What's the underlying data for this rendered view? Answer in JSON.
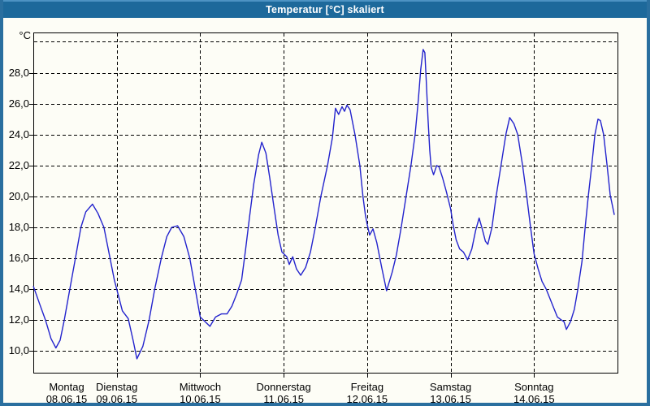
{
  "window": {
    "title": "Temperatur [°C] skaliert",
    "title_bar_color": "#1d699b",
    "border_color": "#2a6f9f",
    "background_color": "#fdfdf6"
  },
  "chart_data": {
    "type": "line",
    "title": "Temperatur [°C] skaliert",
    "ylabel": "°C",
    "xlabel": "",
    "grid": "dashed",
    "legend": "none",
    "line_color": "#2323cd",
    "ylim": [
      8.6,
      30.6
    ],
    "xlim_hours": [
      0,
      168
    ],
    "y_ticks": [
      {
        "value": 10,
        "label": "10,0"
      },
      {
        "value": 12,
        "label": "12,0"
      },
      {
        "value": 14,
        "label": "14,0"
      },
      {
        "value": 16,
        "label": "16,0"
      },
      {
        "value": 18,
        "label": "18,0"
      },
      {
        "value": 20,
        "label": "20,0"
      },
      {
        "value": 22,
        "label": "22,0"
      },
      {
        "value": 24,
        "label": "24,0"
      },
      {
        "value": 26,
        "label": "26,0"
      },
      {
        "value": 28,
        "label": "28,0"
      },
      {
        "value": 30,
        "label": ""
      }
    ],
    "x_categories": [
      {
        "weekday": "Montag",
        "date": "08.06.15"
      },
      {
        "weekday": "Dienstag",
        "date": "09.06.15"
      },
      {
        "weekday": "Mittwoch",
        "date": "10.06.15"
      },
      {
        "weekday": "Donnerstag",
        "date": "11.06.15"
      },
      {
        "weekday": "Freitag",
        "date": "12.06.15"
      },
      {
        "weekday": "Samstag",
        "date": "13.06.15"
      },
      {
        "weekday": "Sonntag",
        "date": "14.06.15"
      }
    ],
    "series": [
      {
        "name": "Temperatur",
        "color": "#2323cd",
        "x_unit": "hours since Montag 00:00",
        "points": [
          [
            0,
            14.2
          ],
          [
            1.9,
            13.0
          ],
          [
            3.5,
            12.0
          ],
          [
            5.1,
            10.8
          ],
          [
            6.5,
            10.2
          ],
          [
            7.7,
            10.7
          ],
          [
            8.9,
            12.0
          ],
          [
            10.5,
            14.0
          ],
          [
            12.1,
            16.0
          ],
          [
            13.7,
            18.0
          ],
          [
            15.1,
            19.0
          ],
          [
            17.0,
            19.5
          ],
          [
            18.6,
            18.9
          ],
          [
            20.3,
            18.0
          ],
          [
            21.9,
            16.2
          ],
          [
            23.3,
            14.6
          ],
          [
            24.0,
            14.0
          ],
          [
            25.6,
            12.6
          ],
          [
            27.3,
            12.1
          ],
          [
            28.7,
            10.7
          ],
          [
            29.8,
            9.5
          ],
          [
            31.5,
            10.3
          ],
          [
            33.3,
            12.0
          ],
          [
            34.9,
            14.0
          ],
          [
            36.8,
            16.0
          ],
          [
            38.4,
            17.4
          ],
          [
            39.8,
            18.0
          ],
          [
            41.5,
            18.1
          ],
          [
            43.3,
            17.4
          ],
          [
            45.0,
            16.0
          ],
          [
            46.6,
            14.0
          ],
          [
            48.0,
            12.2
          ],
          [
            49.4,
            11.9
          ],
          [
            50.8,
            11.6
          ],
          [
            52.4,
            12.2
          ],
          [
            54.1,
            12.4
          ],
          [
            55.7,
            12.4
          ],
          [
            57.1,
            12.9
          ],
          [
            58.5,
            13.7
          ],
          [
            59.9,
            14.6
          ],
          [
            61.0,
            16.5
          ],
          [
            62.2,
            18.7
          ],
          [
            63.4,
            20.8
          ],
          [
            64.8,
            22.7
          ],
          [
            65.7,
            23.5
          ],
          [
            66.9,
            22.8
          ],
          [
            68.0,
            21.2
          ],
          [
            69.2,
            19.3
          ],
          [
            70.4,
            17.5
          ],
          [
            71.5,
            16.4
          ],
          [
            72.0,
            16.3
          ],
          [
            72.9,
            16.1
          ],
          [
            73.6,
            15.6
          ],
          [
            74.6,
            16.1
          ],
          [
            75.7,
            15.3
          ],
          [
            76.9,
            14.9
          ],
          [
            78.3,
            15.4
          ],
          [
            79.7,
            16.4
          ],
          [
            81.1,
            18.0
          ],
          [
            82.7,
            20.0
          ],
          [
            84.6,
            22.0
          ],
          [
            86.0,
            23.8
          ],
          [
            86.9,
            25.7
          ],
          [
            87.8,
            25.3
          ],
          [
            88.8,
            25.8
          ],
          [
            89.5,
            25.5
          ],
          [
            90.2,
            25.9
          ],
          [
            91.1,
            25.6
          ],
          [
            92.5,
            24.0
          ],
          [
            93.9,
            22.0
          ],
          [
            94.8,
            20.0
          ],
          [
            95.5,
            18.8
          ],
          [
            96.0,
            18.2
          ],
          [
            96.7,
            17.5
          ],
          [
            97.7,
            17.9
          ],
          [
            98.8,
            17.0
          ],
          [
            100.2,
            15.4
          ],
          [
            101.6,
            13.9
          ],
          [
            103.2,
            15.1
          ],
          [
            104.4,
            16.2
          ],
          [
            105.8,
            18.0
          ],
          [
            107.2,
            20.0
          ],
          [
            108.6,
            22.0
          ],
          [
            109.8,
            24.0
          ],
          [
            110.7,
            26.2
          ],
          [
            111.4,
            28.2
          ],
          [
            112.1,
            29.5
          ],
          [
            112.6,
            29.3
          ],
          [
            113.0,
            27.5
          ],
          [
            113.5,
            25.0
          ],
          [
            114.0,
            23.0
          ],
          [
            114.4,
            21.9
          ],
          [
            115.1,
            21.4
          ],
          [
            116.0,
            22.0
          ],
          [
            116.7,
            21.9
          ],
          [
            117.7,
            21.2
          ],
          [
            118.8,
            20.3
          ],
          [
            120.0,
            19.2
          ],
          [
            120.7,
            18.2
          ],
          [
            121.6,
            17.2
          ],
          [
            122.6,
            16.6
          ],
          [
            123.7,
            16.4
          ],
          [
            124.9,
            15.9
          ],
          [
            126.1,
            16.6
          ],
          [
            127.2,
            17.8
          ],
          [
            128.2,
            18.6
          ],
          [
            129.1,
            17.9
          ],
          [
            130.0,
            17.1
          ],
          [
            130.7,
            16.9
          ],
          [
            131.9,
            18.0
          ],
          [
            133.1,
            20.0
          ],
          [
            134.5,
            22.0
          ],
          [
            135.9,
            24.0
          ],
          [
            137.0,
            25.1
          ],
          [
            138.2,
            24.7
          ],
          [
            139.3,
            24.0
          ],
          [
            140.7,
            22.0
          ],
          [
            141.9,
            20.0
          ],
          [
            143.0,
            18.0
          ],
          [
            144.0,
            16.3
          ],
          [
            145.2,
            15.3
          ],
          [
            146.3,
            14.5
          ],
          [
            147.5,
            14.0
          ],
          [
            149.1,
            13.1
          ],
          [
            150.7,
            12.2
          ],
          [
            151.9,
            12.0
          ],
          [
            152.6,
            11.9
          ],
          [
            153.3,
            11.4
          ],
          [
            154.5,
            11.9
          ],
          [
            155.6,
            12.7
          ],
          [
            156.6,
            14.0
          ],
          [
            157.8,
            15.8
          ],
          [
            158.7,
            18.0
          ],
          [
            159.6,
            20.0
          ],
          [
            160.6,
            22.0
          ],
          [
            161.5,
            24.0
          ],
          [
            162.4,
            25.0
          ],
          [
            163.1,
            24.9
          ],
          [
            164.0,
            24.0
          ],
          [
            165.0,
            22.0
          ],
          [
            165.9,
            20.1
          ],
          [
            167.1,
            18.8
          ]
        ]
      }
    ]
  }
}
